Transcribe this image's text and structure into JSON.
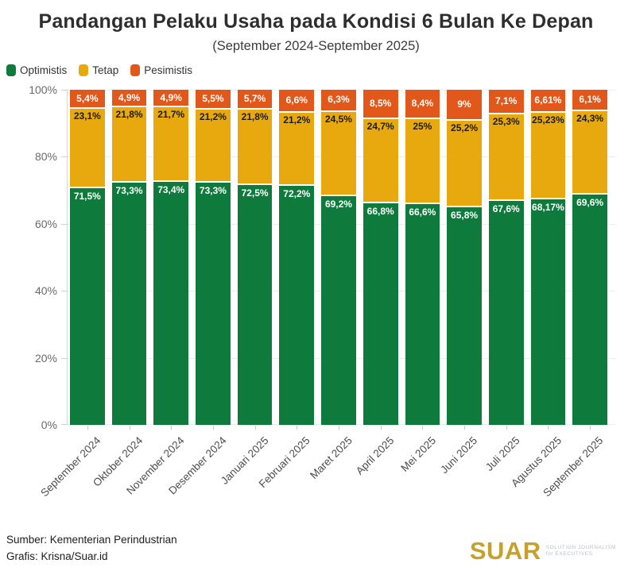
{
  "title": "Pandangan Pelaku Usaha pada Kondisi 6 Bulan Ke Depan",
  "subtitle": "(September 2024-September 2025)",
  "legend": [
    {
      "label": "Optimistis",
      "color": "#0E7B3D"
    },
    {
      "label": "Tetap",
      "color": "#E8A90E"
    },
    {
      "label": "Pesimistis",
      "color": "#E1581A"
    }
  ],
  "chart_data": {
    "type": "bar",
    "variant": "stacked-100-percent",
    "title": "Pandangan Pelaku Usaha pada Kondisi 6 Bulan Ke Depan",
    "subtitle": "(September 2024-September 2025)",
    "categories": [
      "September 2024",
      "Oktober 2024",
      "November 2024",
      "Desember 2024",
      "Januari 2025",
      "Februari 2025",
      "Maret 2025",
      "April 2025",
      "Mei 2025",
      "Juni 2025",
      "Juli 2025",
      "Agustus 2025",
      "September 2025"
    ],
    "series": [
      {
        "name": "Optimistis",
        "key": "optimistis",
        "color": "#0E7B3D",
        "label_color": "#ffffff",
        "values": [
          71.5,
          73.3,
          73.4,
          73.3,
          72.5,
          72.2,
          69.2,
          66.8,
          66.6,
          65.8,
          67.6,
          68.17,
          69.6
        ],
        "labels": [
          "71,5%",
          "73,3%",
          "73,4%",
          "73,3%",
          "72,5%",
          "72,2%",
          "69,2%",
          "66,8%",
          "66,6%",
          "65,8%",
          "67,6%",
          "68,17%",
          "69,6%"
        ]
      },
      {
        "name": "Tetap",
        "key": "tetap",
        "color": "#E8A90E",
        "label_color": "#1c1c1c",
        "values": [
          23.1,
          21.8,
          21.7,
          21.2,
          21.8,
          21.2,
          24.5,
          24.7,
          25,
          25.2,
          25.3,
          25.23,
          24.3
        ],
        "labels": [
          "23,1%",
          "21,8%",
          "21,7%",
          "21,2%",
          "21,8%",
          "21,2%",
          "24,5%",
          "24,7%",
          "25%",
          "25,2%",
          "25,3%",
          "25,23%",
          "24,3%"
        ]
      },
      {
        "name": "Pesimistis",
        "key": "pesimistis",
        "color": "#E1581A",
        "label_color": "#ffffff",
        "values": [
          5.4,
          4.9,
          4.9,
          5.5,
          5.7,
          6.6,
          6.3,
          8.5,
          8.4,
          9,
          7.1,
          6.61,
          6.1
        ],
        "labels": [
          "5,4%",
          "4,9%",
          "4,9%",
          "5,5%",
          "5,7%",
          "6,6%",
          "6,3%",
          "8,5%",
          "8,4%",
          "9%",
          "7,1%",
          "6,61%",
          "6,1%"
        ]
      }
    ],
    "ylim": [
      0,
      100
    ],
    "yticks": [
      "0%",
      "20%",
      "40%",
      "60%",
      "80%",
      "100%"
    ],
    "ytick_values": [
      0,
      20,
      40,
      60,
      80,
      100
    ],
    "grid": "horizontal-faint",
    "legend_position": "top-left"
  },
  "footer": {
    "source": "Sumber: Kementerian Perindustrian",
    "credit": "Grafis: Krisna/Suar.id"
  },
  "logo": {
    "wordmark": "SUAR",
    "tagline_line1": "SOLUTION JOURNALISM",
    "tagline_line2": "for EXECUTIVES",
    "color": "#C8A02C"
  }
}
